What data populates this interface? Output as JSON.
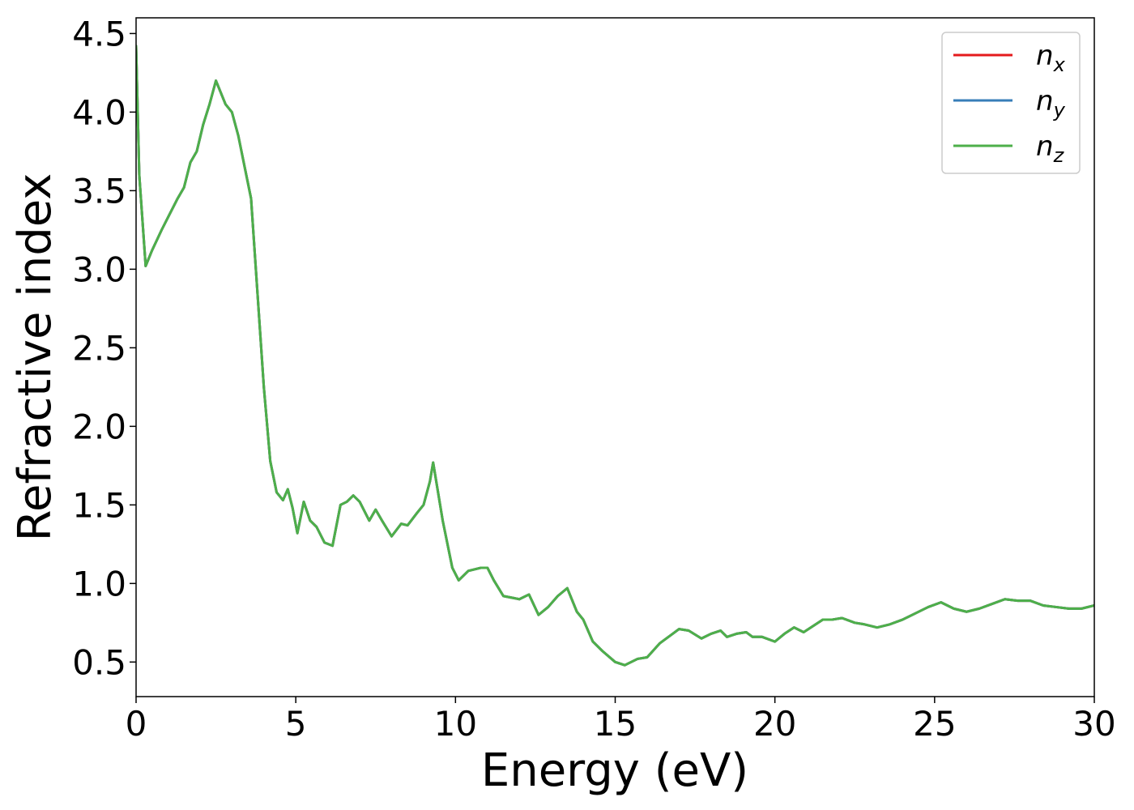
{
  "chart_data": {
    "type": "line",
    "title": "",
    "xlabel": "Energy (eV)",
    "ylabel": "Refractive index",
    "xlim": [
      0,
      30
    ],
    "ylim": [
      0.28,
      4.6
    ],
    "xticks": [
      0,
      5,
      10,
      15,
      20,
      25,
      30
    ],
    "xtick_labels": [
      "0",
      "5",
      "10",
      "15",
      "20",
      "25",
      "30"
    ],
    "yticks": [
      0.5,
      1.0,
      1.5,
      2.0,
      2.5,
      3.0,
      3.5,
      4.0,
      4.5
    ],
    "ytick_labels": [
      "0.5",
      "1.0",
      "1.5",
      "2.0",
      "2.5",
      "3.0",
      "3.5",
      "4.0",
      "4.5"
    ],
    "grid": false,
    "legend_position": "top-right",
    "legend": [
      {
        "base": "n",
        "sub": "x",
        "color": "#e41a1c"
      },
      {
        "base": "n",
        "sub": "y",
        "color": "#377eb8"
      },
      {
        "base": "n",
        "sub": "z",
        "color": "#4daf4a"
      }
    ],
    "x": [
      0.0,
      0.1,
      0.3,
      0.5,
      0.8,
      1.0,
      1.3,
      1.5,
      1.7,
      1.9,
      2.1,
      2.3,
      2.5,
      2.6,
      2.8,
      3.0,
      3.2,
      3.4,
      3.6,
      3.8,
      4.0,
      4.2,
      4.4,
      4.6,
      4.75,
      4.9,
      5.05,
      5.25,
      5.45,
      5.65,
      5.9,
      6.15,
      6.4,
      6.6,
      6.8,
      7.0,
      7.3,
      7.5,
      7.7,
      8.0,
      8.3,
      8.5,
      8.8,
      9.0,
      9.2,
      9.3,
      9.6,
      9.9,
      10.1,
      10.4,
      10.8,
      11.0,
      11.2,
      11.5,
      12.0,
      12.3,
      12.6,
      12.9,
      13.2,
      13.5,
      13.8,
      14.0,
      14.3,
      14.6,
      15.0,
      15.3,
      15.7,
      16.0,
      16.4,
      16.8,
      17.0,
      17.3,
      17.7,
      18.0,
      18.3,
      18.5,
      18.8,
      19.1,
      19.3,
      19.6,
      20.0,
      20.3,
      20.6,
      20.9,
      21.2,
      21.5,
      21.8,
      22.1,
      22.5,
      22.8,
      23.2,
      23.6,
      24.0,
      24.4,
      24.8,
      25.2,
      25.6,
      26.0,
      26.4,
      26.8,
      27.2,
      27.6,
      28.0,
      28.4,
      28.8,
      29.2,
      29.6,
      30.0
    ],
    "series": [
      {
        "name": "n_x",
        "color": "#e41a1c",
        "values": [
          4.42,
          3.6,
          3.02,
          3.12,
          3.25,
          3.33,
          3.45,
          3.52,
          3.68,
          3.75,
          3.92,
          4.05,
          4.2,
          4.15,
          4.05,
          4.0,
          3.85,
          3.65,
          3.45,
          2.85,
          2.25,
          1.78,
          1.58,
          1.53,
          1.6,
          1.48,
          1.32,
          1.52,
          1.4,
          1.36,
          1.26,
          1.24,
          1.5,
          1.52,
          1.56,
          1.52,
          1.4,
          1.47,
          1.4,
          1.3,
          1.38,
          1.37,
          1.45,
          1.5,
          1.65,
          1.77,
          1.4,
          1.1,
          1.02,
          1.08,
          1.1,
          1.1,
          1.02,
          0.92,
          0.9,
          0.93,
          0.8,
          0.85,
          0.92,
          0.97,
          0.82,
          0.77,
          0.63,
          0.57,
          0.5,
          0.48,
          0.52,
          0.53,
          0.62,
          0.68,
          0.71,
          0.7,
          0.65,
          0.68,
          0.7,
          0.66,
          0.68,
          0.69,
          0.66,
          0.66,
          0.63,
          0.68,
          0.72,
          0.69,
          0.73,
          0.77,
          0.77,
          0.78,
          0.75,
          0.74,
          0.72,
          0.74,
          0.77,
          0.81,
          0.85,
          0.88,
          0.84,
          0.82,
          0.84,
          0.87,
          0.9,
          0.89,
          0.89,
          0.86,
          0.85,
          0.84,
          0.84,
          0.86
        ]
      },
      {
        "name": "n_y",
        "color": "#377eb8",
        "values": [
          4.42,
          3.6,
          3.02,
          3.12,
          3.25,
          3.33,
          3.45,
          3.52,
          3.68,
          3.75,
          3.92,
          4.05,
          4.2,
          4.15,
          4.05,
          4.0,
          3.85,
          3.65,
          3.45,
          2.85,
          2.25,
          1.78,
          1.58,
          1.53,
          1.6,
          1.48,
          1.32,
          1.52,
          1.4,
          1.36,
          1.26,
          1.24,
          1.5,
          1.52,
          1.56,
          1.52,
          1.4,
          1.47,
          1.4,
          1.3,
          1.38,
          1.37,
          1.45,
          1.5,
          1.65,
          1.77,
          1.4,
          1.1,
          1.02,
          1.08,
          1.1,
          1.1,
          1.02,
          0.92,
          0.9,
          0.93,
          0.8,
          0.85,
          0.92,
          0.97,
          0.82,
          0.77,
          0.63,
          0.57,
          0.5,
          0.48,
          0.52,
          0.53,
          0.62,
          0.68,
          0.71,
          0.7,
          0.65,
          0.68,
          0.7,
          0.66,
          0.68,
          0.69,
          0.66,
          0.66,
          0.63,
          0.68,
          0.72,
          0.69,
          0.73,
          0.77,
          0.77,
          0.78,
          0.75,
          0.74,
          0.72,
          0.74,
          0.77,
          0.81,
          0.85,
          0.88,
          0.84,
          0.82,
          0.84,
          0.87,
          0.9,
          0.89,
          0.89,
          0.86,
          0.85,
          0.84,
          0.84,
          0.86
        ]
      },
      {
        "name": "n_z",
        "color": "#4daf4a",
        "values": [
          4.42,
          3.6,
          3.02,
          3.12,
          3.25,
          3.33,
          3.45,
          3.52,
          3.68,
          3.75,
          3.92,
          4.05,
          4.2,
          4.15,
          4.05,
          4.0,
          3.85,
          3.65,
          3.45,
          2.85,
          2.25,
          1.78,
          1.58,
          1.53,
          1.6,
          1.48,
          1.32,
          1.52,
          1.4,
          1.36,
          1.26,
          1.24,
          1.5,
          1.52,
          1.56,
          1.52,
          1.4,
          1.47,
          1.4,
          1.3,
          1.38,
          1.37,
          1.45,
          1.5,
          1.65,
          1.77,
          1.4,
          1.1,
          1.02,
          1.08,
          1.1,
          1.1,
          1.02,
          0.92,
          0.9,
          0.93,
          0.8,
          0.85,
          0.92,
          0.97,
          0.82,
          0.77,
          0.63,
          0.57,
          0.5,
          0.48,
          0.52,
          0.53,
          0.62,
          0.68,
          0.71,
          0.7,
          0.65,
          0.68,
          0.7,
          0.66,
          0.68,
          0.69,
          0.66,
          0.66,
          0.63,
          0.68,
          0.72,
          0.69,
          0.73,
          0.77,
          0.77,
          0.78,
          0.75,
          0.74,
          0.72,
          0.74,
          0.77,
          0.81,
          0.85,
          0.88,
          0.84,
          0.82,
          0.84,
          0.87,
          0.9,
          0.89,
          0.89,
          0.86,
          0.85,
          0.84,
          0.84,
          0.86
        ]
      }
    ]
  }
}
